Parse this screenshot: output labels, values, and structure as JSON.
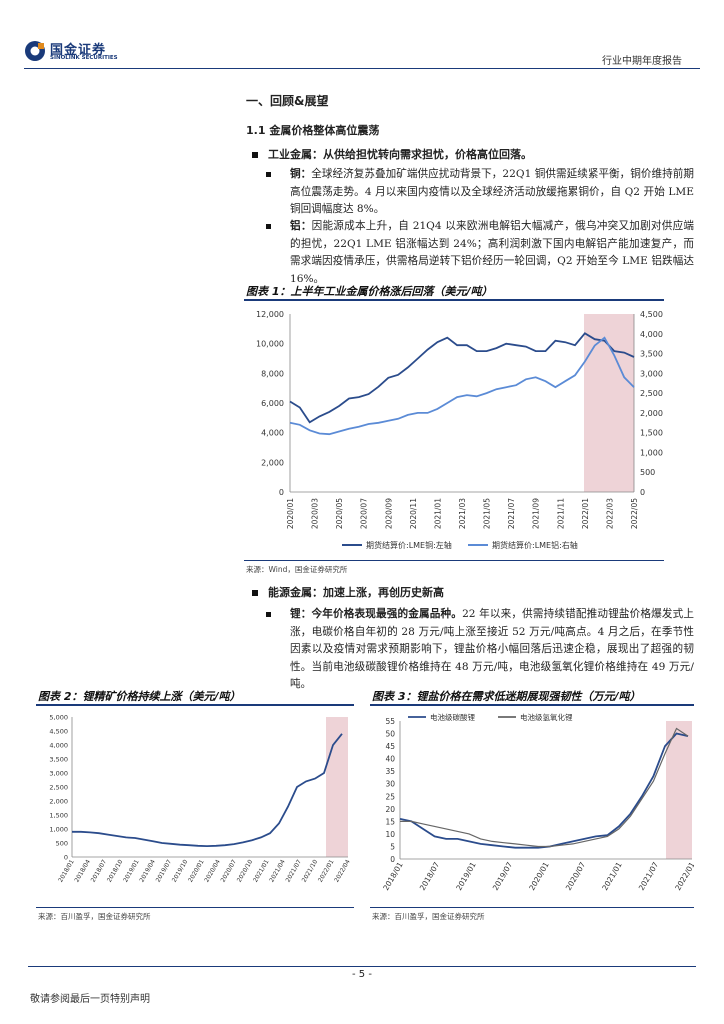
{
  "header": {
    "logo_cn": "国金证券",
    "logo_en": "SINOLINK SECURITIES",
    "report_type": "行业中期年度报告"
  },
  "section": {
    "heading": "一、回顾&展望",
    "subheading": "1.1 金属价格整体高位震荡",
    "industrial": {
      "bullet": "工业金属：从供给担忧转向需求担忧，价格高位回落。",
      "copper_lead": "铜：",
      "copper_text": "全球经济复苏叠加矿端供应扰动背景下，22Q1 铜供需延续紧平衡，铜价维持前期高位震荡走势。4 月以来国内疫情以及全球经济活动放缓拖累铜价，自 Q2 开始 LME 铜回调幅度达 8%。",
      "alu_lead": "铝：",
      "alu_text": "因能源成本上升，自 21Q4 以来欧洲电解铝大幅减产，俄乌冲突又加剧对供应端的担忧，22Q1 LME 铝涨幅达到 24%；高利润刺激下国内电解铝产能加速复产，而需求端因疫情承压，供需格局逆转下铝价经历一轮回调，Q2 开始至今 LME 铝跌幅达 16%。"
    },
    "energy": {
      "bullet": "能源金属：加速上涨，再创历史新高",
      "lithium_lead": "锂：今年价格表现最强的金属品种。",
      "lithium_text": "22 年以来，供需持续错配推动锂盐价格爆发式上涨，电碳价格自年初的 28 万元/吨上涨至接近 52 万元/吨高点。4 月之后，在季节性因素以及疫情对需求预期影响下，锂盐价格小幅回落后迅速企稳，展现出了超强的韧性。当前电池级碳酸锂价格维持在 48 万元/吨，电池级氢氧化锂价格维持在 49 万元/吨。"
    }
  },
  "figure1": {
    "title": "图表 1：上半年工业金属价格涨后回落（美元/吨）",
    "source": "来源：Wind，国金证券研究所",
    "chart_data": {
      "type": "line",
      "title": "",
      "x_labels": [
        "2020/01",
        "2020/03",
        "2020/05",
        "2020/07",
        "2020/09",
        "2020/11",
        "2021/01",
        "2021/03",
        "2021/05",
        "2021/07",
        "2021/09",
        "2021/11",
        "2022/01",
        "2022/03",
        "2022/05"
      ],
      "y_left_ticks": [
        "0",
        "2,000",
        "4,000",
        "6,000",
        "8,000",
        "10,000",
        "12,000"
      ],
      "y_right_ticks": [
        "0",
        "500",
        "1,000",
        "1,500",
        "2,000",
        "2,500",
        "3,000",
        "3,500",
        "4,000",
        "4,500"
      ],
      "ylim_left": [
        0,
        12000
      ],
      "ylim_right": [
        0,
        4500
      ],
      "shaded_region_label": "",
      "series": [
        {
          "name": "期货结算价:LME铜:左轴",
          "axis": "left",
          "color": "#2b4c8c",
          "values": [
            6100,
            5700,
            4700,
            5100,
            5400,
            5800,
            6300,
            6400,
            6600,
            7100,
            7700,
            7900,
            8400,
            9000,
            9600,
            10100,
            10400,
            9900,
            9900,
            9500,
            9500,
            9700,
            10000,
            9900,
            9800,
            9500,
            9500,
            10200,
            10100,
            9900,
            10700,
            10300,
            10200,
            9500,
            9400,
            9100
          ]
        },
        {
          "name": "期货结算价:LME铝:右轴",
          "axis": "right",
          "color": "#5b8bd6",
          "values": [
            1750,
            1700,
            1560,
            1480,
            1460,
            1530,
            1600,
            1650,
            1720,
            1750,
            1800,
            1850,
            1950,
            2000,
            2000,
            2100,
            2250,
            2400,
            2450,
            2420,
            2500,
            2600,
            2650,
            2700,
            2850,
            2900,
            2800,
            2650,
            2800,
            2950,
            3300,
            3700,
            3900,
            3450,
            2900,
            2650
          ]
        }
      ]
    }
  },
  "figure2": {
    "title": "图表 2：锂精矿价格持续上涨（美元/吨）",
    "source": "来源：百川盈孚，国金证券研究所",
    "chart_data": {
      "type": "line",
      "title": "",
      "x_labels": [
        "2018/01",
        "2018/04",
        "2018/07",
        "2018/10",
        "2019/01",
        "2019/04",
        "2019/07",
        "2019/10",
        "2020/01",
        "2020/04",
        "2020/07",
        "2020/10",
        "2021/01",
        "2021/04",
        "2021/07",
        "2021/10",
        "2022/01",
        "2022/04"
      ],
      "y_ticks": [
        "0",
        "500",
        "1,000",
        "1,500",
        "2,000",
        "2,500",
        "3,000",
        "3,500",
        "4,000",
        "4,500",
        "5,000"
      ],
      "ylim": [
        0,
        5000
      ],
      "series": [
        {
          "name": "锂精矿",
          "color": "#2b4c8c",
          "values": [
            900,
            900,
            880,
            850,
            800,
            750,
            700,
            680,
            620,
            560,
            500,
            470,
            440,
            420,
            400,
            390,
            400,
            420,
            460,
            520,
            600,
            700,
            850,
            1200,
            1800,
            2500,
            2700,
            2800,
            3000,
            4000,
            4400
          ]
        }
      ]
    }
  },
  "figure3": {
    "title": "图表 3：锂盐价格在需求低迷期展现强韧性（万元/吨）",
    "source": "来源：百川盈孚，国金证券研究所",
    "chart_data": {
      "type": "line",
      "title": "",
      "x_labels": [
        "2018/01",
        "2018/07",
        "2019/01",
        "2019/07",
        "2020/01",
        "2020/07",
        "2021/01",
        "2021/07",
        "2022/01"
      ],
      "y_ticks": [
        "0",
        "5",
        "10",
        "15",
        "20",
        "25",
        "30",
        "35",
        "40",
        "45",
        "50",
        "55"
      ],
      "ylim": [
        0,
        55
      ],
      "series": [
        {
          "name": "电池级碳酸锂",
          "color": "#2b4c8c",
          "values": [
            16,
            15,
            12,
            9,
            8,
            8,
            7,
            6,
            5.5,
            5,
            4.5,
            4.5,
            4.5,
            5,
            6,
            7,
            8,
            9,
            9.5,
            13,
            18,
            25,
            33,
            45,
            50,
            49
          ]
        },
        {
          "name": "电池级氢氧化锂",
          "color": "#666666",
          "values": [
            15,
            15,
            14,
            13,
            12,
            11,
            10,
            8,
            7,
            6.5,
            6,
            5.5,
            5,
            5,
            5.5,
            6,
            7,
            8,
            9,
            12,
            17,
            24,
            31,
            42,
            52,
            49
          ]
        }
      ]
    }
  },
  "footer": {
    "page": "- 5 -",
    "disclaimer": "敬请参阅最后一页特别声明"
  }
}
